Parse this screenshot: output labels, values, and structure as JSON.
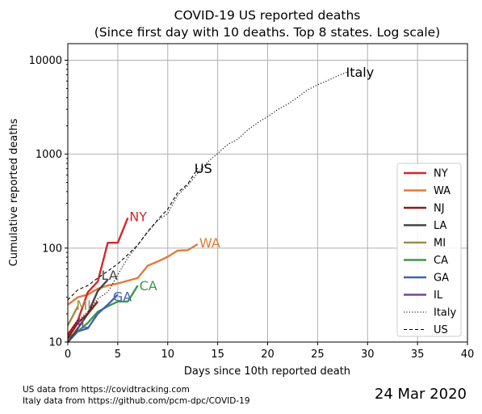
{
  "chart_data": {
    "type": "line",
    "title_line1": "COVID-19 US reported deaths",
    "title_line2": "(Since first day with 10 deaths. Top 8 states. Log scale)",
    "xlabel": "Days since 10th reported death",
    "ylabel": "Cumulative reported deaths",
    "xlim": [
      0,
      40
    ],
    "ylim": [
      10,
      15000
    ],
    "y_scale": "log",
    "x_ticks": [
      "0",
      "5",
      "10",
      "15",
      "20",
      "25",
      "30",
      "35",
      "40"
    ],
    "x_tick_values": [
      0,
      5,
      10,
      15,
      20,
      25,
      30,
      35,
      40
    ],
    "y_ticks": [
      "10",
      "100",
      "1000",
      "10000"
    ],
    "y_tick_values": [
      10,
      100,
      1000,
      10000
    ],
    "grid": true,
    "legend_position": "right",
    "series": [
      {
        "name": "NY",
        "color": "#d62728",
        "style": "solid",
        "label": "NY",
        "x": [
          0,
          1,
          2,
          3,
          4,
          5,
          6
        ],
        "y": [
          12,
          17,
          34,
          44,
          114,
          114,
          210
        ]
      },
      {
        "name": "WA",
        "color": "#e07b39",
        "style": "solid",
        "label": "WA",
        "x": [
          0,
          1,
          2,
          3,
          4,
          5,
          6,
          7,
          8,
          9,
          10,
          11,
          12,
          13
        ],
        "y": [
          25,
          30,
          32,
          37,
          40,
          42,
          45,
          48,
          65,
          72,
          81,
          94,
          95,
          110
        ]
      },
      {
        "name": "NJ",
        "color": "#8c1c1c",
        "style": "solid",
        "label": "",
        "x": [
          0,
          1,
          2,
          3
        ],
        "y": [
          11,
          16,
          20,
          27
        ]
      },
      {
        "name": "LA",
        "color": "#444444",
        "style": "solid",
        "label": "LA",
        "x": [
          0,
          1,
          2,
          3,
          4
        ],
        "y": [
          10,
          14,
          20,
          35,
          46
        ]
      },
      {
        "name": "MI",
        "color": "#a08c44",
        "style": "solid",
        "label": "MI",
        "x": [
          0,
          1
        ],
        "y": [
          15,
          24
        ]
      },
      {
        "name": "CA",
        "color": "#3a9a4a",
        "style": "solid",
        "label": "CA",
        "x": [
          0,
          1,
          2,
          3,
          4,
          5,
          6,
          7
        ],
        "y": [
          11,
          13,
          16,
          21,
          24,
          27,
          27,
          40
        ]
      },
      {
        "name": "GA",
        "color": "#3d64b0",
        "style": "solid",
        "label": "GA",
        "x": [
          0,
          1,
          2,
          3,
          4,
          5
        ],
        "y": [
          10,
          13,
          14,
          20,
          25,
          32
        ]
      },
      {
        "name": "IL",
        "color": "#6d4a9c",
        "style": "solid",
        "label": "IL",
        "x": [
          0,
          1
        ],
        "y": [
          12,
          16
        ]
      },
      {
        "name": "Italy",
        "color": "#000000",
        "style": "dotted",
        "label": "Italy",
        "x": [
          0,
          1,
          2,
          3,
          4,
          5,
          6,
          7,
          8,
          9,
          10,
          11,
          12,
          13,
          14,
          15,
          16,
          17,
          18,
          19,
          20,
          21,
          22,
          23,
          24,
          25,
          26,
          27,
          28
        ],
        "y": [
          12,
          17,
          21,
          29,
          34,
          52,
          79,
          107,
          148,
          197,
          233,
          366,
          463,
          631,
          827,
          1016,
          1266,
          1441,
          1809,
          2158,
          2503,
          2978,
          3405,
          4032,
          4825,
          5476,
          6077,
          6820,
          7503
        ]
      },
      {
        "name": "US",
        "color": "#000000",
        "style": "dashed",
        "label": "US",
        "x": [
          0,
          1,
          2,
          3,
          4,
          5,
          6,
          7,
          8,
          9,
          10,
          11,
          12,
          13
        ],
        "y": [
          28,
          36,
          40,
          48,
          57,
          68,
          85,
          108,
          150,
          200,
          260,
          390,
          480,
          706
        ]
      }
    ],
    "sources": [
      "US data from https://covidtracking.com",
      "Italy data from https://github.com/pcm-dpc/COVID-19"
    ],
    "date": "24 Mar 2020"
  }
}
